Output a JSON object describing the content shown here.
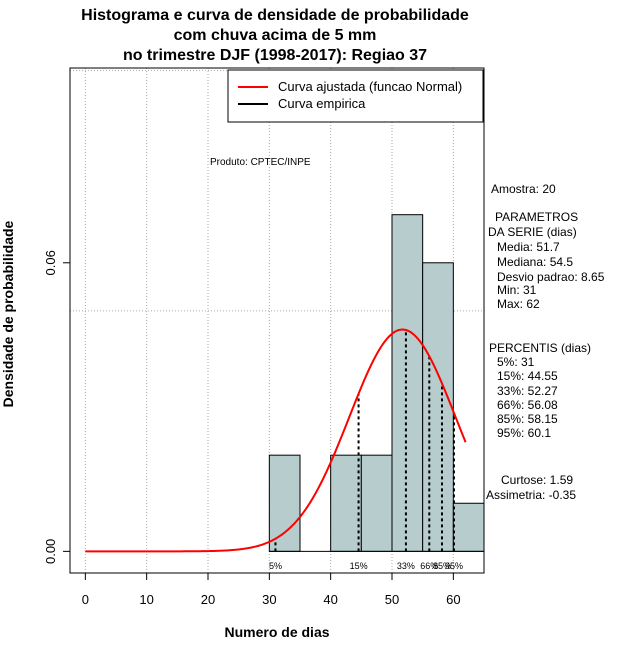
{
  "title": {
    "line1": "Histograma e curva de densidade de probabilidade",
    "line2": "com chuva acima de 5 mm",
    "line3": "no trimestre DJF (1998-2017): Regiao 37"
  },
  "product_label": "Produto: CPTEC/INPE",
  "legend": {
    "fitted": "Curva ajustada (funcao Normal)",
    "empirical": "Curva empirica"
  },
  "colors": {
    "fitted_curve": "#ff0000",
    "bars": "#b7cccc",
    "empirical": "#000000",
    "grid": "#aaaaaa"
  },
  "stats": {
    "amostra": "Amostra: 20",
    "param_title_1": "PARAMETROS",
    "param_title_2": "DA SERIE (dias)",
    "media": "Media: 51.7",
    "mediana": "Mediana: 54.5",
    "desvio": "Desvio padrao: 8.65",
    "min": "Min: 31",
    "max": "Max: 62",
    "percentis_title": "PERCENTIS (dias)",
    "p5": "5%: 31",
    "p15": "15%: 44.55",
    "p33": "33%: 52.27",
    "p66": "66%: 56.08",
    "p85": "85%: 58.15",
    "p95": "95%: 60.1",
    "curtose": "Curtose: 1.59",
    "assimetria": "Assimetria: -0.35"
  },
  "chart_data": {
    "type": "bar",
    "xlabel": "Numero de dias",
    "ylabel": "Densidade de probabilidade",
    "xlim": [
      -2.5,
      65
    ],
    "ylim": [
      -0.0045,
      0.1005
    ],
    "x_ticks": [
      0,
      10,
      20,
      30,
      40,
      50,
      60
    ],
    "y_ticks": [
      0.0,
      0.06
    ],
    "y_tick_labels": [
      "0.00",
      "0.06"
    ],
    "grid_x": [
      0,
      10,
      20,
      30,
      40,
      50,
      60
    ],
    "grid_y": [
      0.05,
      0.1
    ],
    "bins": [
      {
        "x0": 30,
        "x1": 35,
        "density": 0.02
      },
      {
        "x0": 35,
        "x1": 40,
        "density": 0.0
      },
      {
        "x0": 40,
        "x1": 45,
        "density": 0.02
      },
      {
        "x0": 45,
        "x1": 50,
        "density": 0.02
      },
      {
        "x0": 50,
        "x1": 55,
        "density": 0.07
      },
      {
        "x0": 55,
        "x1": 60,
        "density": 0.06
      },
      {
        "x0": 60,
        "x1": 65,
        "density": 0.01
      }
    ],
    "normal_fit": {
      "mean": 51.7,
      "sd": 8.65,
      "x_start": 0,
      "x_end": 62
    },
    "percentiles": [
      {
        "label": "5%",
        "value": 31
      },
      {
        "label": "15%",
        "value": 44.55
      },
      {
        "label": "33%",
        "value": 52.27
      },
      {
        "label": "66%",
        "value": 56.08
      },
      {
        "label": "85%",
        "value": 58.15
      },
      {
        "label": "95%",
        "value": 60.1
      }
    ]
  }
}
